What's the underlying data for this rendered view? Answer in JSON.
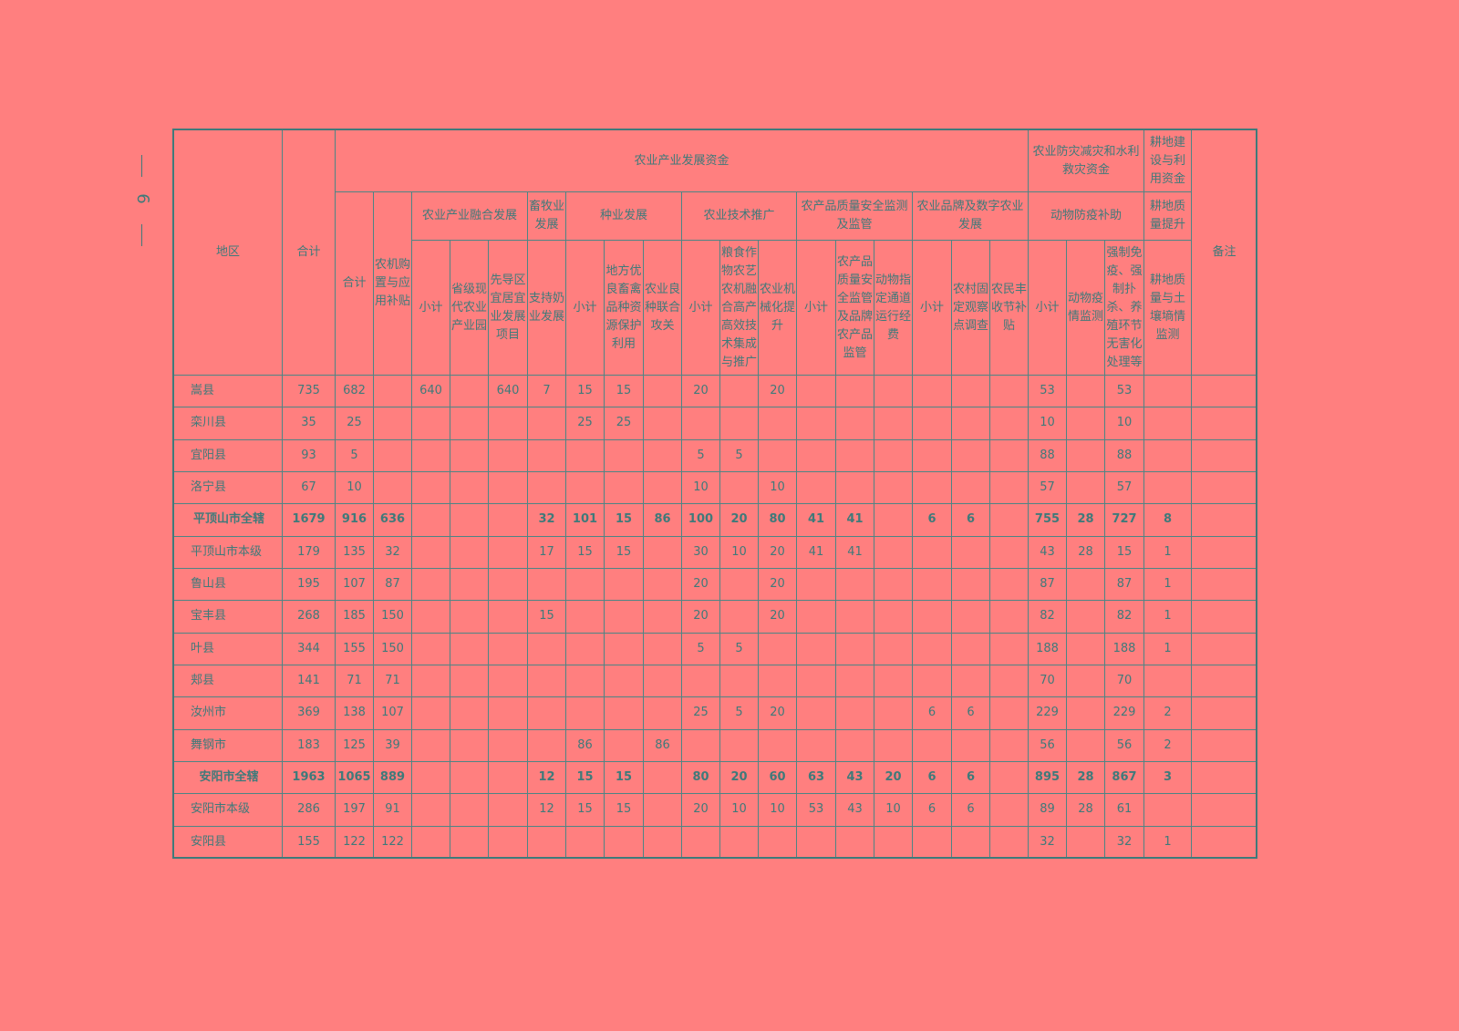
{
  "page_number": "6",
  "header": {
    "region": "地区",
    "total": "合计",
    "remarks": "备注",
    "funds": [
      {
        "title": "农业产业发展资金",
        "total": "合计",
        "machinery": "农机购置与应用补贴",
        "groups": [
          {
            "title": "农业产业融合发展",
            "columns": [
              "小计",
              "省级现代农业产业园",
              "先导区宜居宜业发展项目"
            ]
          },
          {
            "title": "畜牧业发展",
            "columns": [
              "支持奶业发展"
            ]
          },
          {
            "title": "种业发展",
            "columns": [
              "小计",
              "地方优良畜禽品种资源保护利用",
              "农业良种联合攻关"
            ]
          },
          {
            "title": "农业技术推广",
            "columns": [
              "小计",
              "粮食作物农艺农机融合高产高效技术集成与推广",
              "农业机械化提升"
            ]
          },
          {
            "title": "农产品质量安全监测及监管",
            "columns": [
              "小计",
              "农产品质量安全监管及品牌农产品监管",
              "动物指定通道运行经费"
            ]
          },
          {
            "title": "农业品牌及数字农业发展",
            "columns": [
              "小计",
              "农村固定观察点调查",
              "农民丰收节补贴"
            ]
          }
        ]
      },
      {
        "title": "农业防灾减灾和水利救灾资金",
        "groups": [
          {
            "title": "动物防疫补助",
            "columns": [
              "小计",
              "动物疫情监测",
              "强制免疫、强制扑杀、养殖环节无害化处理等"
            ]
          }
        ]
      },
      {
        "title": "耕地建设与利用资金",
        "groups": [
          {
            "title": "耕地质量提升",
            "columns": [
              "耕地质量与土壤墒情监测"
            ]
          }
        ]
      }
    ]
  },
  "rows": [
    {
      "region": "嵩县",
      "subtotal": false,
      "values": [
        735,
        682,
        null,
        640,
        null,
        640,
        7,
        15,
        15,
        null,
        20,
        null,
        20,
        null,
        null,
        null,
        null,
        null,
        null,
        53,
        null,
        53,
        null
      ]
    },
    {
      "region": "栾川县",
      "subtotal": false,
      "values": [
        35,
        25,
        null,
        null,
        null,
        null,
        null,
        25,
        25,
        null,
        null,
        null,
        null,
        null,
        null,
        null,
        null,
        null,
        null,
        10,
        null,
        10,
        null
      ]
    },
    {
      "region": "宜阳县",
      "subtotal": false,
      "values": [
        93,
        5,
        null,
        null,
        null,
        null,
        null,
        null,
        null,
        null,
        5,
        5,
        null,
        null,
        null,
        null,
        null,
        null,
        null,
        88,
        null,
        88,
        null
      ]
    },
    {
      "region": "洛宁县",
      "subtotal": false,
      "values": [
        67,
        10,
        null,
        null,
        null,
        null,
        null,
        null,
        null,
        null,
        10,
        null,
        10,
        null,
        null,
        null,
        null,
        null,
        null,
        57,
        null,
        57,
        null
      ]
    },
    {
      "region": "平顶山市全辖",
      "subtotal": true,
      "values": [
        1679,
        916,
        636,
        null,
        null,
        null,
        32,
        101,
        15,
        86,
        100,
        20,
        80,
        41,
        41,
        null,
        6,
        6,
        null,
        755,
        28,
        727,
        8
      ]
    },
    {
      "region": "平顶山市本级",
      "subtotal": false,
      "values": [
        179,
        135,
        32,
        null,
        null,
        null,
        17,
        15,
        15,
        null,
        30,
        10,
        20,
        41,
        41,
        null,
        null,
        null,
        null,
        43,
        28,
        15,
        1
      ]
    },
    {
      "region": "鲁山县",
      "subtotal": false,
      "values": [
        195,
        107,
        87,
        null,
        null,
        null,
        null,
        null,
        null,
        null,
        20,
        null,
        20,
        null,
        null,
        null,
        null,
        null,
        null,
        87,
        null,
        87,
        1
      ]
    },
    {
      "region": "宝丰县",
      "subtotal": false,
      "values": [
        268,
        185,
        150,
        null,
        null,
        null,
        15,
        null,
        null,
        null,
        20,
        null,
        20,
        null,
        null,
        null,
        null,
        null,
        null,
        82,
        null,
        82,
        1
      ]
    },
    {
      "region": "叶县",
      "subtotal": false,
      "values": [
        344,
        155,
        150,
        null,
        null,
        null,
        null,
        null,
        null,
        null,
        5,
        5,
        null,
        null,
        null,
        null,
        null,
        null,
        null,
        188,
        null,
        188,
        1
      ]
    },
    {
      "region": "郏县",
      "subtotal": false,
      "values": [
        141,
        71,
        71,
        null,
        null,
        null,
        null,
        null,
        null,
        null,
        null,
        null,
        null,
        null,
        null,
        null,
        null,
        null,
        null,
        70,
        null,
        70,
        null
      ]
    },
    {
      "region": "汝州市",
      "subtotal": false,
      "values": [
        369,
        138,
        107,
        null,
        null,
        null,
        null,
        null,
        null,
        null,
        25,
        5,
        20,
        null,
        null,
        null,
        6,
        6,
        null,
        229,
        null,
        229,
        2
      ]
    },
    {
      "region": "舞钢市",
      "subtotal": false,
      "values": [
        183,
        125,
        39,
        null,
        null,
        null,
        null,
        86,
        null,
        86,
        null,
        null,
        null,
        null,
        null,
        null,
        null,
        null,
        null,
        56,
        null,
        56,
        2
      ]
    },
    {
      "region": "安阳市全辖",
      "subtotal": true,
      "values": [
        1963,
        1065,
        889,
        null,
        null,
        null,
        12,
        15,
        15,
        null,
        80,
        20,
        60,
        63,
        43,
        20,
        6,
        6,
        null,
        895,
        28,
        867,
        3
      ]
    },
    {
      "region": "安阳市本级",
      "subtotal": false,
      "values": [
        286,
        197,
        91,
        null,
        null,
        null,
        12,
        15,
        15,
        null,
        20,
        10,
        10,
        53,
        43,
        10,
        6,
        6,
        null,
        89,
        28,
        61,
        null
      ]
    },
    {
      "region": "安阳县",
      "subtotal": false,
      "values": [
        155,
        122,
        122,
        null,
        null,
        null,
        null,
        null,
        null,
        null,
        null,
        null,
        null,
        null,
        null,
        null,
        null,
        null,
        null,
        32,
        null,
        32,
        1
      ]
    }
  ]
}
